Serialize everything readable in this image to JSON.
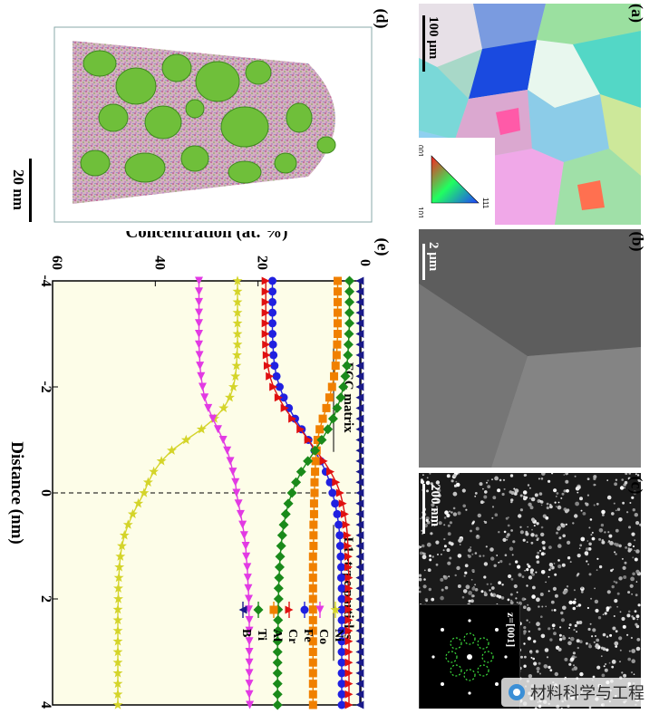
{
  "panels": {
    "a": {
      "label": "(a)",
      "scale_bar": "100 μm",
      "ipf": [
        "001",
        "101",
        "111"
      ]
    },
    "b": {
      "label": "(b)",
      "scale_bar": "2 μm"
    },
    "c": {
      "label": "(c)",
      "scale_bar": "200 nm",
      "zone_axis": "z=[001]"
    },
    "d": {
      "label": "(d)",
      "scale_bar": "20 nm"
    },
    "e": {
      "label": "(e)"
    }
  },
  "watermark": "材料科学与工程",
  "chart_data": {
    "type": "line",
    "title": "",
    "xlabel": "Distance (nm)",
    "ylabel": "Concentration (at. %)",
    "xlim": [
      -4,
      4
    ],
    "ylim": [
      0,
      60
    ],
    "x_ticks": [
      -4,
      -2,
      0,
      2,
      4
    ],
    "y_ticks": [
      0,
      20,
      40,
      60
    ],
    "annotations": [
      "FCC matrix",
      "L1₂-type particles"
    ],
    "legend_position": "bottom-right",
    "colors": {
      "Ni": "#d4d42a",
      "Co": "#e23ae3",
      "Fe": "#2020e0",
      "Cr": "#e01010",
      "Al": "#f08000",
      "Ti": "#1a8a1a",
      "B": "#1a1a8a"
    },
    "x": [
      -4.0,
      -3.8,
      -3.6,
      -3.4,
      -3.2,
      -3.0,
      -2.8,
      -2.6,
      -2.4,
      -2.2,
      -2.0,
      -1.8,
      -1.6,
      -1.4,
      -1.2,
      -1.0,
      -0.8,
      -0.6,
      -0.4,
      -0.2,
      0.0,
      0.2,
      0.4,
      0.6,
      0.8,
      1.0,
      1.2,
      1.4,
      1.6,
      1.8,
      2.0,
      2.2,
      2.4,
      2.6,
      2.8,
      3.0,
      3.2,
      3.4,
      3.6,
      3.8,
      4.0
    ],
    "series": [
      {
        "name": "Ni",
        "marker": "star",
        "values": [
          24,
          24,
          24,
          24,
          24,
          24,
          24,
          24.1,
          24.2,
          24.4,
          24.8,
          25.5,
          26.7,
          28.5,
          31,
          34,
          36.8,
          38.8,
          40.3,
          41.4,
          42.2,
          43.3,
          44.4,
          45.3,
          46,
          46.5,
          46.8,
          47,
          47.1,
          47.2,
          47.2,
          47.3,
          47.3,
          47.3,
          47.3,
          47.3,
          47.3,
          47.3,
          47.3,
          47.3,
          47.3
        ]
      },
      {
        "name": "Co",
        "marker": "triangle-right",
        "values": [
          31.5,
          31.5,
          31.5,
          31.5,
          31.5,
          31.5,
          31.5,
          31.4,
          31.3,
          31.1,
          30.8,
          30.4,
          29.7,
          28.8,
          27.8,
          26.8,
          26,
          25.4,
          24.9,
          24.4,
          24.2,
          23.8,
          23.4,
          23,
          22.7,
          22.4,
          22.3,
          22.1,
          22,
          21.9,
          21.8,
          21.8,
          21.7,
          21.7,
          21.7,
          21.7,
          21.7,
          21.7,
          21.7,
          21.7,
          21.6
        ]
      },
      {
        "name": "Fe",
        "marker": "circle",
        "values": [
          17.2,
          17.2,
          17.2,
          17.2,
          17.2,
          17.2,
          17.1,
          17,
          16.8,
          16.4,
          15.8,
          15,
          14,
          12.8,
          11.5,
          10.2,
          9,
          7.8,
          6.8,
          6,
          5.5,
          5,
          4.6,
          4.3,
          4.1,
          4,
          3.9,
          3.8,
          3.8,
          3.7,
          3.7,
          3.7,
          3.7,
          3.7,
          3.7,
          3.7,
          3.7,
          3.7,
          3.7,
          3.7,
          3.7
        ]
      },
      {
        "name": "Cr",
        "marker": "triangle-up",
        "values": [
          18.5,
          18.5,
          18.5,
          18.5,
          18.5,
          18.5,
          18.4,
          18.3,
          18.1,
          17.7,
          17,
          16,
          14.8,
          13.3,
          11.7,
          10.2,
          8.7,
          7.2,
          5.9,
          4.8,
          4,
          3.5,
          3.1,
          2.8,
          2.6,
          2.5,
          2.4,
          2.4,
          2.3,
          2.3,
          2.3,
          2.3,
          2.3,
          2.3,
          2.3,
          2.3,
          2.3,
          2.3,
          2.3,
          2.3,
          2.3
        ]
      },
      {
        "name": "Al",
        "marker": "square",
        "values": [
          4.5,
          4.5,
          4.5,
          4.5,
          4.5,
          4.5,
          4.6,
          4.7,
          4.9,
          5.2,
          5.6,
          6.1,
          6.7,
          7.4,
          8,
          8.4,
          8.6,
          8.8,
          8.9,
          9,
          9,
          9.1,
          9.1,
          9.2,
          9.2,
          9.2,
          9.3,
          9.3,
          9.3,
          9.3,
          9.3,
          9.3,
          9.3,
          9.3,
          9.3,
          9.3,
          9.3,
          9.3,
          9.3,
          9.3,
          9.3
        ]
      },
      {
        "name": "Ti",
        "marker": "diamond",
        "values": [
          2.2,
          2.2,
          2.2,
          2.2,
          2.2,
          2.3,
          2.4,
          2.5,
          2.7,
          3,
          3.4,
          3.9,
          4.6,
          5.4,
          6.4,
          7.6,
          8.9,
          10.3,
          11.6,
          12.6,
          13.4,
          14.1,
          14.6,
          15,
          15.3,
          15.5,
          15.7,
          15.8,
          15.9,
          16,
          16,
          16.1,
          16.1,
          16.1,
          16.2,
          16.2,
          16.2,
          16.2,
          16.2,
          16.2,
          16.2
        ]
      },
      {
        "name": "B",
        "marker": "triangle-down",
        "values": [
          0.2,
          0.2,
          0.2,
          0.2,
          0.2,
          0.2,
          0.2,
          0.2,
          0.2,
          0.2,
          0.2,
          0.2,
          0.2,
          0.2,
          0.2,
          0.2,
          0.2,
          0.2,
          0.2,
          0.2,
          0.2,
          0.2,
          0.2,
          0.2,
          0.2,
          0.2,
          0.2,
          0.2,
          0.2,
          0.2,
          0.2,
          0.2,
          0.2,
          0.2,
          0.2,
          0.2,
          0.2,
          0.2,
          0.2,
          0.2,
          0.2
        ]
      }
    ]
  }
}
